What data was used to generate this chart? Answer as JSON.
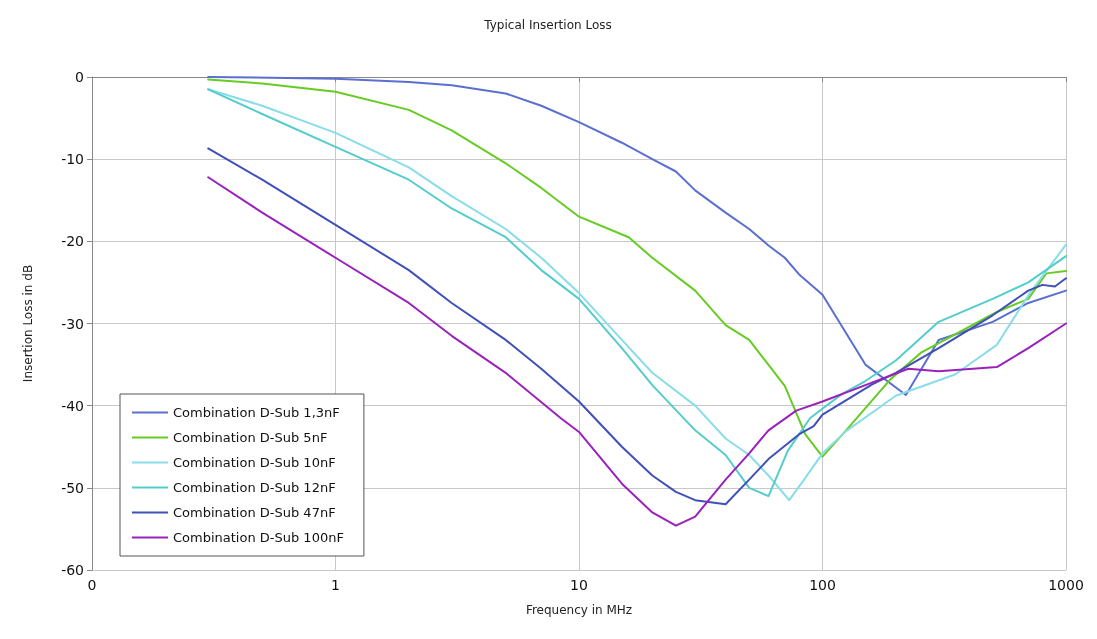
{
  "chart_data": {
    "type": "line",
    "title": "Typical Insertion Loss",
    "xlabel": "Frequency in MHz",
    "ylabel": "Insertion Loss in dB",
    "log": "x",
    "xlim": [
      0.1,
      1000
    ],
    "xticks": [
      {
        "value": 0.1,
        "label": "0"
      },
      1,
      10,
      100,
      1000
    ],
    "ylim": [
      -60,
      0
    ],
    "yticks": [
      -60,
      -50,
      -40,
      -30,
      -20,
      -10,
      0
    ],
    "grid": true,
    "legend": "bottom left",
    "marker": "none",
    "line_style": "solid",
    "series": [
      {
        "name": "Combination D-Sub 1,3nF",
        "color": "#5b6fd0",
        "x": [
          0.3,
          1,
          2,
          3,
          5,
          7,
          10,
          15,
          20,
          25,
          30,
          40,
          50,
          60,
          70,
          80,
          100,
          150,
          220,
          300,
          500,
          700,
          1000
        ],
        "values": [
          0,
          -0.2,
          -0.6,
          -1,
          -2,
          -3.5,
          -5.5,
          -8,
          -10,
          -11.5,
          -13.8,
          -16.5,
          -18.5,
          -20.5,
          -22,
          -24,
          -26.5,
          -35,
          -38.7,
          -32,
          -29.8,
          -27.5,
          -26
        ]
      },
      {
        "name": "Combination D-Sub 5nF",
        "color": "#66cc22",
        "x": [
          0.3,
          0.5,
          1,
          2,
          3,
          5,
          7,
          10,
          16,
          20,
          30,
          40,
          50,
          70,
          85,
          100,
          125,
          190,
          255,
          520,
          700,
          830,
          1000
        ],
        "values": [
          -0.3,
          -0.8,
          -1.8,
          -4,
          -6.5,
          -10.5,
          -13.5,
          -17,
          -19.5,
          -22,
          -26,
          -30.2,
          -32,
          -37.6,
          -43.5,
          -46.2,
          -43,
          -36.8,
          -33.5,
          -28.6,
          -27,
          -23.9,
          -23.6
        ]
      },
      {
        "name": "Combination D-Sub 10nF",
        "color": "#88dde8",
        "x": [
          0.3,
          0.5,
          1,
          2,
          3,
          5,
          7,
          10,
          15,
          20,
          30,
          40,
          50,
          60,
          73,
          84,
          100,
          125,
          200,
          350,
          520,
          710,
          1000
        ],
        "values": [
          -1.5,
          -3.5,
          -6.8,
          -11,
          -14.5,
          -18.5,
          -22,
          -26.3,
          -32,
          -36,
          -40,
          -44,
          -46,
          -48.5,
          -51.5,
          -49,
          -45.8,
          -43.1,
          -38.8,
          -36.2,
          -32.6,
          -26.3,
          -20.4
        ]
      },
      {
        "name": "Combination D-Sub 12nF",
        "color": "#55cccc",
        "x": [
          0.3,
          0.5,
          1,
          2,
          3,
          5,
          7,
          10,
          15,
          20,
          30,
          40,
          50,
          60,
          72,
          89,
          120,
          150,
          200,
          300,
          500,
          700,
          1000
        ],
        "values": [
          -1.5,
          -4.5,
          -8.5,
          -12.5,
          -16,
          -19.5,
          -23.5,
          -27,
          -33,
          -37.5,
          -43,
          -46,
          -50,
          -51,
          -45.5,
          -41.5,
          -38.6,
          -37,
          -34.5,
          -29.8,
          -27,
          -25,
          -21.8
        ]
      },
      {
        "name": "Combination D-Sub 47nF",
        "color": "#4050b8",
        "x": [
          0.3,
          0.5,
          1,
          2,
          3,
          5,
          7,
          10,
          15,
          20,
          25,
          30,
          40,
          50,
          60,
          80,
          92,
          100,
          160,
          200,
          300,
          500,
          700,
          800,
          900,
          1000
        ],
        "values": [
          -8.7,
          -12.5,
          -18,
          -23.5,
          -27.5,
          -32,
          -35.5,
          -39.5,
          -45,
          -48.5,
          -50.5,
          -51.5,
          -52,
          -49,
          -46.5,
          -43.5,
          -42.5,
          -41.1,
          -37.4,
          -36,
          -33,
          -29,
          -26,
          -25.3,
          -25.5,
          -24.5
        ]
      },
      {
        "name": "Combination D-Sub 100nF",
        "color": "#9922bb",
        "x": [
          0.3,
          0.5,
          1,
          2,
          3,
          5,
          8.4,
          10,
          15,
          20,
          25,
          30,
          40,
          50,
          60,
          78,
          100,
          150,
          225,
          300,
          520,
          700,
          1000
        ],
        "values": [
          -12.2,
          -16.5,
          -22,
          -27.5,
          -31.5,
          -36,
          -41.5,
          -43.2,
          -49.5,
          -53,
          -54.6,
          -53.5,
          -49,
          -45.8,
          -43,
          -40.6,
          -39.5,
          -37.5,
          -35.5,
          -35.8,
          -35.3,
          -33,
          -30
        ]
      }
    ]
  }
}
